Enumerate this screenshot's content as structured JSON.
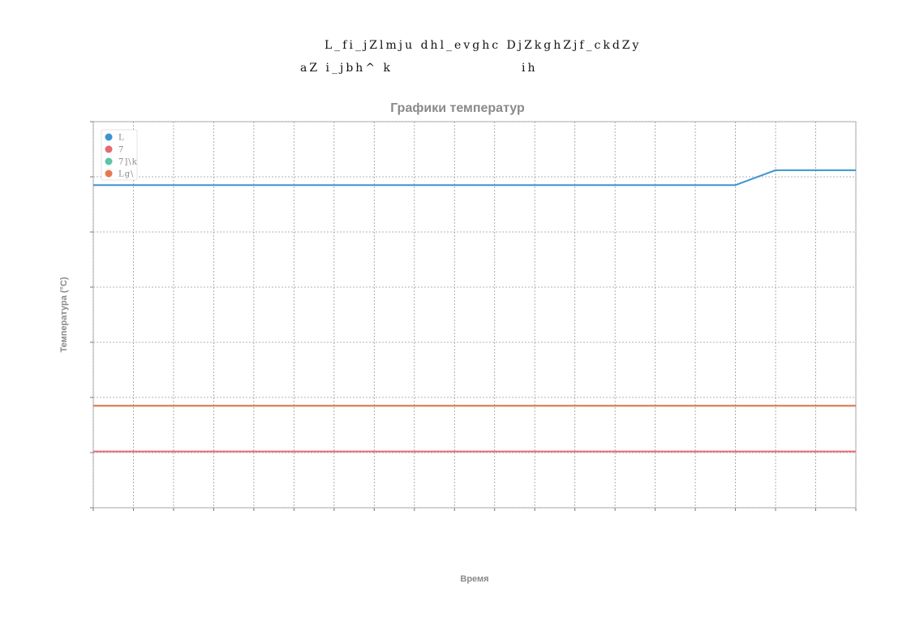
{
  "header": {
    "line1": "L_fi_jZlmju dhl_evghc DjZkghZjf_ckdZy",
    "line2_left": "aZ i_jbh^ k",
    "line2_right": "ih"
  },
  "colors": {
    "series_blue": "#3a95d0",
    "series_red": "#e46a73",
    "series_teal": "#5fc3a8",
    "series_orange": "#e8794f"
  },
  "chart_data": {
    "type": "line",
    "title": "Графики температур",
    "xlabel": "Время",
    "ylabel": "Температура (°C)",
    "x": [
      0,
      1,
      2,
      3,
      4,
      5,
      6,
      7,
      8,
      9,
      10,
      11,
      12,
      13,
      14,
      15,
      16,
      17,
      18,
      19
    ],
    "xlim": [
      0,
      19
    ],
    "ylim": [
      0,
      7
    ],
    "yticks": [
      0,
      1,
      2,
      3,
      4,
      5,
      6,
      7
    ],
    "grid": true,
    "legend_position": "top-left",
    "series": [
      {
        "name": "L",
        "color": "#3a95d0",
        "values": [
          5.85,
          5.85,
          5.85,
          5.85,
          5.85,
          5.85,
          5.85,
          5.85,
          5.85,
          5.85,
          5.85,
          5.85,
          5.85,
          5.85,
          5.85,
          5.85,
          5.85,
          6.12,
          6.12,
          6.12
        ]
      },
      {
        "name": "7",
        "color": "#e46a73",
        "values": [
          1.02,
          1.02,
          1.02,
          1.02,
          1.02,
          1.02,
          1.02,
          1.02,
          1.02,
          1.02,
          1.02,
          1.02,
          1.02,
          1.02,
          1.02,
          1.02,
          1.02,
          1.02,
          1.02,
          1.02
        ]
      },
      {
        "name": "7]\\k",
        "color": "#5fc3a8",
        "values": [
          1.85,
          1.85,
          1.85,
          1.85,
          1.85,
          1.85,
          1.85,
          1.85,
          1.85,
          1.85,
          1.85,
          1.85,
          1.85,
          1.85,
          1.85,
          1.85,
          1.85,
          1.85,
          1.85,
          1.85
        ]
      },
      {
        "name": "Lg\\",
        "color": "#e8794f",
        "values": [
          1.85,
          1.85,
          1.85,
          1.85,
          1.85,
          1.85,
          1.85,
          1.85,
          1.85,
          1.85,
          1.85,
          1.85,
          1.85,
          1.85,
          1.85,
          1.85,
          1.85,
          1.85,
          1.85,
          1.85
        ]
      }
    ]
  }
}
